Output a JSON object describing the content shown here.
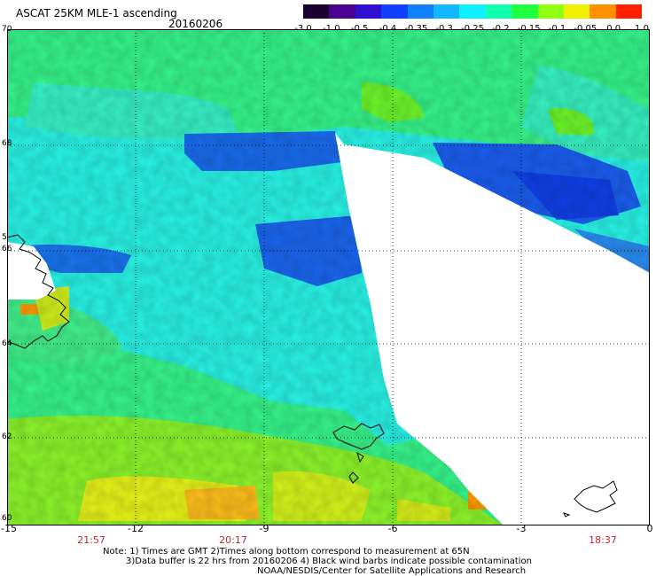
{
  "header": {
    "title": "ASCAT 25KM MLE-1 ascending",
    "date": "20160206"
  },
  "colorbar": {
    "ticks": [
      "-3.0",
      "-1.0",
      "-0.5",
      "-0.4",
      "-0.35",
      "-0.3",
      "-0.25",
      "-0.2",
      "-0.15",
      "-0.1",
      "-0.05",
      "0.0",
      "1.0"
    ],
    "colors": [
      "#1a0030",
      "#4a0090",
      "#3010d0",
      "#1040ff",
      "#1080ff",
      "#10b8ff",
      "#10f0ff",
      "#10ffb0",
      "#20ff40",
      "#90ff10",
      "#f0f000",
      "#ff9000",
      "#ff2000"
    ]
  },
  "map": {
    "lat_ticks": [
      "70",
      "68",
      "66",
      "64",
      "62",
      "60"
    ],
    "lon_ticks": [
      "-15",
      "-12",
      "-9",
      "-6",
      "-3",
      "0"
    ],
    "lat_range": [
      60,
      70
    ],
    "lon_range": [
      -15,
      0
    ],
    "extra_left_label": "5",
    "time_labels": [
      "21:57",
      "20:17",
      "18:37"
    ],
    "colors": {
      "green": "#30ff60",
      "cyan": "#20f8f0",
      "blue": "#1048f0",
      "yellow": "#f4f000",
      "orange": "#ff8c00",
      "land_outline": "#000000",
      "grid": "#000000"
    }
  },
  "notes": {
    "line1": "Note: 1) Times are GMT 2)Times along bottom correspond to measurement at 65N",
    "line2": "3)Data buffer is 22 hrs from 20160206 4) Black wind barbs indicate possible contamination",
    "line3": "NOAA/NESDIS/Center for Satellite Applications and Research"
  }
}
